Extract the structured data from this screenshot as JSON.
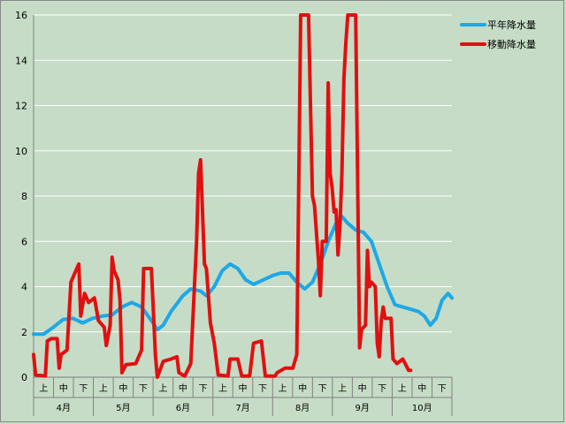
{
  "chart_data": {
    "type": "line",
    "xlabel": "",
    "ylabel": "",
    "ylim": [
      0,
      16
    ],
    "yticks": [
      0,
      2,
      4,
      6,
      8,
      10,
      12,
      14,
      16
    ],
    "grid": true,
    "legend_position": "top-right",
    "months": [
      "4月",
      "5月",
      "6月",
      "7月",
      "8月",
      "9月",
      "10月"
    ],
    "periods": [
      "上",
      "中",
      "下"
    ],
    "x_day_range": [
      0,
      213
    ],
    "series": [
      {
        "name": "平年降水量",
        "color": "#1ea8e6",
        "points": [
          [
            0,
            1.9
          ],
          [
            5,
            1.9
          ],
          [
            10,
            2.2
          ],
          [
            15,
            2.55
          ],
          [
            20,
            2.6
          ],
          [
            25,
            2.4
          ],
          [
            30,
            2.6
          ],
          [
            35,
            2.7
          ],
          [
            40,
            2.75
          ],
          [
            45,
            3.1
          ],
          [
            50,
            3.3
          ],
          [
            55,
            3.1
          ],
          [
            60,
            2.5
          ],
          [
            63,
            2.1
          ],
          [
            66,
            2.3
          ],
          [
            70,
            2.9
          ],
          [
            76,
            3.6
          ],
          [
            80,
            3.9
          ],
          [
            85,
            3.8
          ],
          [
            88,
            3.6
          ],
          [
            92,
            4.0
          ],
          [
            96,
            4.7
          ],
          [
            100,
            5.0
          ],
          [
            104,
            4.8
          ],
          [
            108,
            4.3
          ],
          [
            112,
            4.1
          ],
          [
            117,
            4.3
          ],
          [
            122,
            4.5
          ],
          [
            126,
            4.6
          ],
          [
            130,
            4.6
          ],
          [
            134,
            4.2
          ],
          [
            138,
            3.9
          ],
          [
            142,
            4.2
          ],
          [
            146,
            5.0
          ],
          [
            150,
            6.0
          ],
          [
            154,
            6.8
          ],
          [
            157,
            7.1
          ],
          [
            160,
            6.8
          ],
          [
            164,
            6.5
          ],
          [
            168,
            6.4
          ],
          [
            172,
            6.0
          ],
          [
            176,
            5.0
          ],
          [
            180,
            4.0
          ],
          [
            184,
            3.2
          ],
          [
            188,
            3.1
          ],
          [
            192,
            3.0
          ],
          [
            196,
            2.9
          ],
          [
            199,
            2.7
          ],
          [
            202,
            2.3
          ],
          [
            205,
            2.6
          ],
          [
            208,
            3.4
          ],
          [
            211,
            3.7
          ],
          [
            213,
            3.5
          ]
        ]
      },
      {
        "name": "移動降水量",
        "color": "#e01010",
        "points": [
          [
            0,
            1.0
          ],
          [
            1,
            0.1
          ],
          [
            6,
            0.05
          ],
          [
            7,
            1.6
          ],
          [
            9,
            1.7
          ],
          [
            12,
            1.7
          ],
          [
            13,
            0.4
          ],
          [
            14,
            1.0
          ],
          [
            17,
            1.2
          ],
          [
            19,
            4.2
          ],
          [
            21,
            4.6
          ],
          [
            23,
            5.0
          ],
          [
            24,
            2.7
          ],
          [
            26,
            3.7
          ],
          [
            28,
            3.3
          ],
          [
            31,
            3.5
          ],
          [
            33,
            2.5
          ],
          [
            36,
            2.2
          ],
          [
            37,
            1.4
          ],
          [
            39,
            2.3
          ],
          [
            40,
            5.3
          ],
          [
            41,
            4.7
          ],
          [
            43,
            4.3
          ],
          [
            44,
            3.4
          ],
          [
            45,
            0.2
          ],
          [
            47,
            0.55
          ],
          [
            52,
            0.6
          ],
          [
            55,
            1.2
          ],
          [
            56,
            4.8
          ],
          [
            60,
            4.8
          ],
          [
            62,
            1.0
          ],
          [
            63,
            0.0
          ],
          [
            66,
            0.7
          ],
          [
            70,
            0.8
          ],
          [
            73,
            0.9
          ],
          [
            74,
            0.2
          ],
          [
            77,
            0.05
          ],
          [
            80,
            0.6
          ],
          [
            83,
            6.0
          ],
          [
            84,
            9.0
          ],
          [
            85,
            9.6
          ],
          [
            87,
            5.0
          ],
          [
            88,
            4.8
          ],
          [
            90,
            2.4
          ],
          [
            92,
            1.5
          ],
          [
            94,
            0.1
          ],
          [
            99,
            0.05
          ],
          [
            100,
            0.8
          ],
          [
            104,
            0.8
          ],
          [
            106,
            0.05
          ],
          [
            110,
            0.05
          ],
          [
            112,
            1.5
          ],
          [
            116,
            1.6
          ],
          [
            118,
            0.05
          ],
          [
            123,
            0.05
          ],
          [
            124,
            0.2
          ],
          [
            128,
            0.4
          ],
          [
            132,
            0.4
          ],
          [
            134,
            1.0
          ],
          [
            136,
            16.0
          ],
          [
            140,
            16.0
          ],
          [
            142,
            8.0
          ],
          [
            143,
            7.6
          ],
          [
            145,
            5.2
          ],
          [
            146,
            3.6
          ],
          [
            147,
            6.0
          ],
          [
            149,
            6.0
          ],
          [
            150,
            13.0
          ],
          [
            151,
            9.0
          ],
          [
            152,
            8.4
          ],
          [
            153,
            7.3
          ],
          [
            154,
            7.4
          ],
          [
            155,
            5.4
          ],
          [
            156,
            6.7
          ],
          [
            157,
            9.0
          ],
          [
            158,
            13.2
          ],
          [
            159,
            14.8
          ],
          [
            160,
            16.0
          ],
          [
            161,
            16.0
          ],
          [
            164,
            16.0
          ],
          [
            166,
            1.3
          ],
          [
            167,
            2.1
          ],
          [
            169,
            2.3
          ],
          [
            170,
            5.6
          ],
          [
            171,
            4.0
          ],
          [
            172,
            4.2
          ],
          [
            174,
            4.0
          ],
          [
            175,
            1.5
          ],
          [
            176,
            0.9
          ],
          [
            177,
            2.5
          ],
          [
            178,
            3.1
          ],
          [
            179,
            2.6
          ],
          [
            182,
            2.6
          ],
          [
            183,
            0.8
          ],
          [
            185,
            0.6
          ],
          [
            188,
            0.8
          ],
          [
            191,
            0.3
          ],
          [
            192,
            0.3
          ]
        ]
      }
    ]
  }
}
